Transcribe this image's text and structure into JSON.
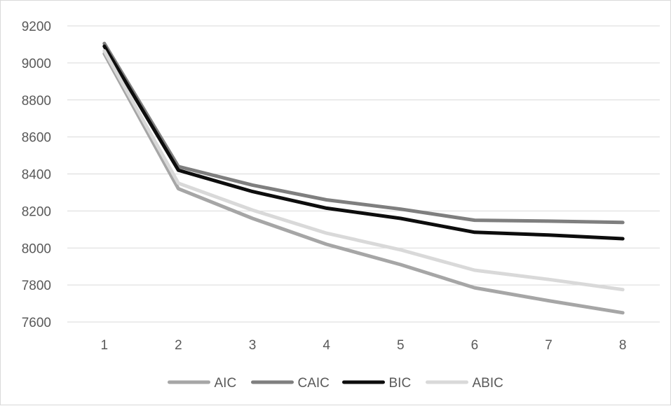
{
  "chart_data": {
    "type": "line",
    "title": "",
    "xlabel": "",
    "ylabel": "",
    "categories": [
      "1",
      "2",
      "3",
      "4",
      "5",
      "6",
      "7",
      "8"
    ],
    "ylim": [
      7600,
      9200
    ],
    "yticks": [
      7600,
      7800,
      8000,
      8200,
      8400,
      8600,
      8800,
      9000,
      9200
    ],
    "grid": "horizontal",
    "legend_position": "bottom",
    "series": [
      {
        "name": "AIC",
        "color": "#a6a6a6",
        "values": [
          9050,
          8320,
          8160,
          8020,
          7910,
          7785,
          7715,
          7650
        ]
      },
      {
        "name": "CAIC",
        "color": "#7f7f7f",
        "values": [
          9105,
          8440,
          8340,
          8260,
          8210,
          8150,
          8145,
          8138
        ]
      },
      {
        "name": "BIC",
        "color": "#0d0d0d",
        "values": [
          9090,
          8420,
          8305,
          8215,
          8160,
          8085,
          8070,
          8050
        ]
      },
      {
        "name": "ABIC",
        "color": "#d9d9d9",
        "values": [
          9065,
          8350,
          8205,
          8080,
          7990,
          7880,
          7830,
          7775
        ]
      }
    ]
  }
}
